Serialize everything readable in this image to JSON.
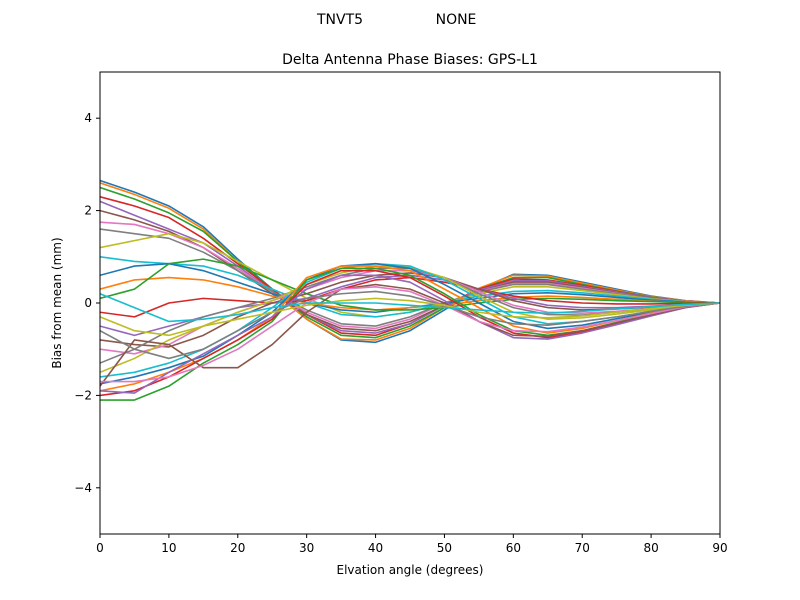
{
  "figure": {
    "suptitle_left": "TNVT5",
    "suptitle_right": "NONE"
  },
  "chart_data": {
    "type": "line",
    "title": "Delta Antenna Phase Biases: GPS-L1",
    "xlabel": "Elvation angle (degrees)",
    "ylabel": "Bias from mean (mm)",
    "xlim": [
      0,
      90
    ],
    "ylim": [
      -5,
      5
    ],
    "xticks": [
      0,
      10,
      20,
      30,
      40,
      50,
      60,
      70,
      80,
      90
    ],
    "yticks": [
      -4,
      -2,
      0,
      2,
      4
    ],
    "ytick_labels": [
      "−4",
      "−2",
      "0",
      "2",
      "4"
    ],
    "grid": false,
    "legend": "none",
    "colors": [
      "#1f77b4",
      "#ff7f0e",
      "#2ca02c",
      "#d62728",
      "#9467bd",
      "#8c564b",
      "#e377c2",
      "#7f7f7f",
      "#bcbd22",
      "#17becf"
    ],
    "x": [
      0,
      5,
      10,
      15,
      20,
      25,
      30,
      35,
      40,
      45,
      50,
      55,
      60,
      65,
      70,
      75,
      80,
      85,
      90
    ],
    "series": [
      {
        "values": [
          2.65,
          2.4,
          2.1,
          1.65,
          0.95,
          0.3,
          -0.35,
          -0.8,
          -0.85,
          -0.6,
          -0.15,
          0.3,
          0.62,
          0.6,
          0.45,
          0.3,
          0.15,
          0.05,
          0
        ]
      },
      {
        "values": [
          2.6,
          2.35,
          2.05,
          1.6,
          0.9,
          0.25,
          -0.35,
          -0.78,
          -0.8,
          -0.55,
          -0.1,
          0.32,
          0.6,
          0.58,
          0.43,
          0.28,
          0.14,
          0.05,
          0
        ]
      },
      {
        "values": [
          2.5,
          2.25,
          1.95,
          1.55,
          0.9,
          0.3,
          -0.3,
          -0.7,
          -0.75,
          -0.5,
          -0.1,
          0.3,
          0.55,
          0.55,
          0.4,
          0.26,
          0.13,
          0.04,
          0
        ]
      },
      {
        "values": [
          2.3,
          2.1,
          1.85,
          1.4,
          0.85,
          0.3,
          -0.25,
          -0.65,
          -0.7,
          -0.45,
          -0.05,
          0.3,
          0.52,
          0.5,
          0.38,
          0.25,
          0.12,
          0.04,
          0
        ]
      },
      {
        "values": [
          2.2,
          1.9,
          1.6,
          1.3,
          0.8,
          0.25,
          -0.25,
          -0.6,
          -0.65,
          -0.45,
          -0.05,
          0.28,
          0.48,
          0.48,
          0.36,
          0.24,
          0.12,
          0.04,
          0
        ]
      },
      {
        "values": [
          2.0,
          1.8,
          1.55,
          1.2,
          0.7,
          0.2,
          -0.25,
          -0.55,
          -0.6,
          -0.4,
          -0.05,
          0.25,
          0.45,
          0.45,
          0.34,
          0.22,
          0.11,
          0.03,
          0
        ]
      },
      {
        "values": [
          1.75,
          1.7,
          1.5,
          1.2,
          0.75,
          0.25,
          -0.2,
          -0.5,
          -0.55,
          -0.35,
          0.0,
          0.25,
          0.42,
          0.42,
          0.32,
          0.21,
          0.1,
          0.03,
          0
        ]
      },
      {
        "values": [
          1.6,
          1.5,
          1.4,
          1.1,
          0.7,
          0.25,
          -0.15,
          -0.45,
          -0.5,
          -0.3,
          0.0,
          0.24,
          0.4,
          0.4,
          0.3,
          0.2,
          0.1,
          0.03,
          0
        ]
      },
      {
        "values": [
          1.2,
          1.35,
          1.5,
          1.3,
          0.9,
          0.5,
          0.1,
          -0.2,
          -0.3,
          -0.2,
          0.0,
          0.2,
          0.35,
          0.35,
          0.27,
          0.18,
          0.09,
          0.03,
          0
        ]
      },
      {
        "values": [
          1.0,
          0.9,
          0.85,
          0.8,
          0.6,
          0.3,
          0.0,
          -0.25,
          -0.3,
          -0.2,
          0.0,
          0.15,
          0.25,
          0.27,
          0.22,
          0.15,
          0.08,
          0.02,
          0
        ]
      },
      {
        "values": [
          0.6,
          0.8,
          0.85,
          0.7,
          0.45,
          0.2,
          0.0,
          -0.15,
          -0.2,
          -0.1,
          0.0,
          0.1,
          0.2,
          0.22,
          0.18,
          0.12,
          0.06,
          0.02,
          0
        ]
      },
      {
        "values": [
          0.3,
          0.5,
          0.55,
          0.5,
          0.35,
          0.15,
          0.0,
          -0.1,
          -0.15,
          -0.1,
          -0.05,
          0.05,
          0.12,
          0.15,
          0.12,
          0.08,
          0.04,
          0.01,
          0
        ]
      },
      {
        "values": [
          0.1,
          0.3,
          0.85,
          0.95,
          0.8,
          0.5,
          0.2,
          -0.05,
          -0.15,
          -0.15,
          -0.1,
          0.0,
          0.08,
          0.1,
          0.08,
          0.05,
          0.03,
          0.01,
          0
        ]
      },
      {
        "values": [
          -0.2,
          -0.3,
          0.0,
          0.1,
          0.05,
          0.0,
          0.05,
          0.3,
          0.5,
          0.55,
          0.45,
          0.3,
          0.15,
          0.05,
          0.0,
          -0.02,
          -0.02,
          -0.01,
          0
        ]
      },
      {
        "values": [
          -0.5,
          -0.7,
          -0.5,
          -0.3,
          -0.1,
          0.0,
          0.1,
          0.35,
          0.55,
          0.6,
          0.5,
          0.3,
          0.1,
          -0.05,
          -0.1,
          -0.1,
          -0.07,
          -0.03,
          0
        ]
      },
      {
        "values": [
          -0.8,
          -0.9,
          -0.95,
          -0.7,
          -0.3,
          0.0,
          0.2,
          0.45,
          0.6,
          0.65,
          0.55,
          0.3,
          0.05,
          -0.1,
          -0.15,
          -0.13,
          -0.09,
          -0.04,
          0
        ]
      },
      {
        "values": [
          -1.0,
          -1.1,
          -0.9,
          -0.5,
          -0.2,
          0.05,
          0.3,
          0.55,
          0.7,
          0.7,
          0.55,
          0.25,
          -0.05,
          -0.2,
          -0.22,
          -0.18,
          -0.12,
          -0.05,
          0
        ]
      },
      {
        "values": [
          -1.3,
          -1.0,
          -0.6,
          -0.3,
          -0.1,
          0.1,
          0.35,
          0.6,
          0.75,
          0.75,
          0.55,
          0.2,
          -0.1,
          -0.25,
          -0.26,
          -0.2,
          -0.13,
          -0.05,
          0
        ]
      },
      {
        "values": [
          -1.5,
          -1.2,
          -0.8,
          -0.5,
          -0.2,
          0.05,
          0.4,
          0.65,
          0.8,
          0.78,
          0.55,
          0.15,
          -0.2,
          -0.35,
          -0.32,
          -0.24,
          -0.15,
          -0.06,
          0
        ]
      },
      {
        "values": [
          -1.6,
          -1.5,
          -1.3,
          -1.0,
          -0.6,
          -0.1,
          0.45,
          0.75,
          0.85,
          0.8,
          0.5,
          0.1,
          -0.3,
          -0.45,
          -0.4,
          -0.3,
          -0.18,
          -0.07,
          0
        ]
      },
      {
        "values": [
          -1.75,
          -1.6,
          -1.4,
          -1.15,
          -0.7,
          -0.2,
          0.5,
          0.8,
          0.85,
          0.75,
          0.4,
          0.0,
          -0.4,
          -0.55,
          -0.48,
          -0.34,
          -0.2,
          -0.08,
          0
        ]
      },
      {
        "values": [
          -1.9,
          -1.75,
          -1.5,
          -1.2,
          -0.8,
          -0.3,
          0.55,
          0.8,
          0.8,
          0.7,
          0.3,
          -0.1,
          -0.5,
          -0.65,
          -0.55,
          -0.38,
          -0.22,
          -0.08,
          0
        ]
      },
      {
        "values": [
          -2.1,
          -2.1,
          -1.8,
          -1.3,
          -0.9,
          -0.4,
          0.5,
          0.75,
          0.75,
          0.6,
          0.2,
          -0.25,
          -0.6,
          -0.7,
          -0.6,
          -0.42,
          -0.25,
          -0.09,
          0
        ]
      },
      {
        "values": [
          -2.0,
          -1.9,
          -1.6,
          -1.2,
          -0.8,
          -0.35,
          0.4,
          0.7,
          0.7,
          0.55,
          0.15,
          -0.3,
          -0.65,
          -0.75,
          -0.63,
          -0.45,
          -0.27,
          -0.1,
          0
        ]
      },
      {
        "values": [
          -1.9,
          -1.95,
          -1.5,
          -1.1,
          -0.7,
          -0.3,
          0.3,
          0.6,
          0.6,
          0.45,
          0.05,
          -0.4,
          -0.75,
          -0.78,
          -0.65,
          -0.47,
          -0.28,
          -0.1,
          0
        ]
      },
      {
        "values": [
          -1.8,
          -0.8,
          -0.9,
          -1.4,
          -1.4,
          -0.9,
          -0.2,
          0.3,
          0.4,
          0.3,
          0.0,
          -0.4,
          -0.7,
          -0.72,
          -0.6,
          -0.43,
          -0.26,
          -0.09,
          0
        ]
      },
      {
        "values": [
          -1.7,
          -1.7,
          -1.6,
          -1.35,
          -1.0,
          -0.5,
          0.0,
          0.3,
          0.35,
          0.25,
          -0.05,
          -0.4,
          -0.6,
          -0.62,
          -0.52,
          -0.38,
          -0.23,
          -0.08,
          0
        ]
      },
      {
        "values": [
          -0.6,
          -1.0,
          -1.2,
          -1.0,
          -0.6,
          -0.2,
          0.1,
          0.2,
          0.25,
          0.15,
          -0.05,
          -0.3,
          -0.45,
          -0.48,
          -0.4,
          -0.3,
          -0.18,
          -0.07,
          0
        ]
      },
      {
        "values": [
          -0.3,
          -0.6,
          -0.7,
          -0.5,
          -0.35,
          -0.2,
          -0.05,
          0.05,
          0.1,
          0.05,
          -0.05,
          -0.2,
          -0.3,
          -0.32,
          -0.28,
          -0.2,
          -0.12,
          -0.05,
          0
        ]
      },
      {
        "values": [
          0.2,
          -0.1,
          -0.4,
          -0.35,
          -0.25,
          -0.1,
          0.0,
          0.0,
          0.0,
          -0.05,
          -0.1,
          -0.15,
          -0.2,
          -0.22,
          -0.18,
          -0.13,
          -0.08,
          -0.03,
          0
        ]
      }
    ]
  }
}
